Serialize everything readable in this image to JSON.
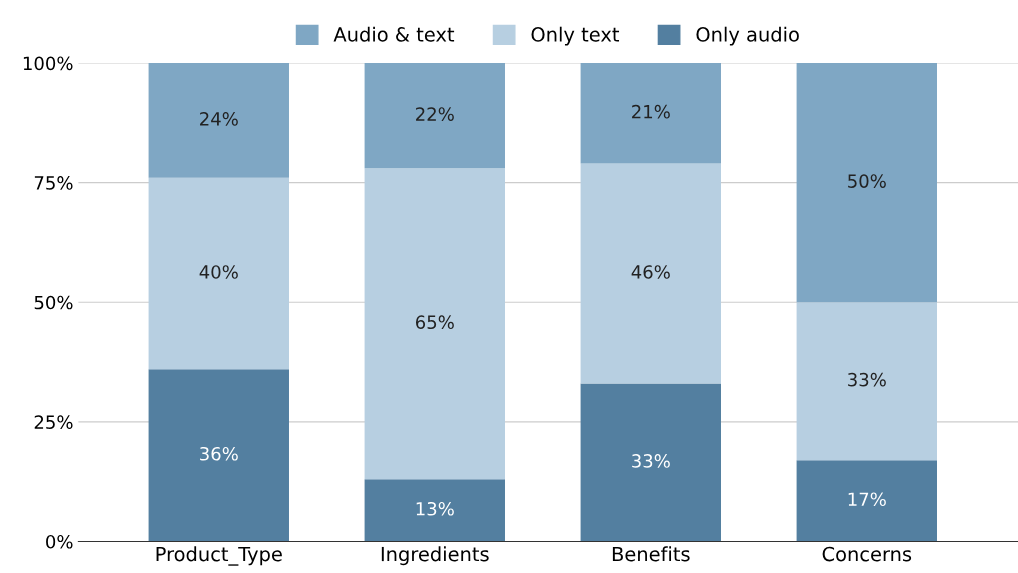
{
  "chart_data": {
    "type": "bar",
    "stacked": true,
    "categories": [
      "Product_Type",
      "Ingredients",
      "Benefits",
      "Concerns"
    ],
    "series": [
      {
        "name": "Only audio",
        "color": "#537fa0",
        "values": [
          36,
          13,
          33,
          17
        ],
        "value_labels": [
          "36%",
          "13%",
          "33%",
          "17%"
        ]
      },
      {
        "name": "Only text",
        "color": "#b7cfe1",
        "values": [
          40,
          65,
          46,
          33
        ],
        "value_labels": [
          "40%",
          "65%",
          "46%",
          "33%"
        ]
      },
      {
        "name": "Audio & text",
        "color": "#7fa7c4",
        "values": [
          24,
          22,
          21,
          50
        ],
        "value_labels": [
          "24%",
          "22%",
          "21%",
          "50%"
        ]
      }
    ],
    "ylim": [
      0,
      100
    ],
    "yticks": [
      {
        "value": 0,
        "label": "0%"
      },
      {
        "value": 25,
        "label": "25%"
      },
      {
        "value": 50,
        "label": "50%"
      },
      {
        "value": 75,
        "label": "75%"
      },
      {
        "value": 100,
        "label": "100%"
      }
    ],
    "grid": "y",
    "legend": "top"
  }
}
